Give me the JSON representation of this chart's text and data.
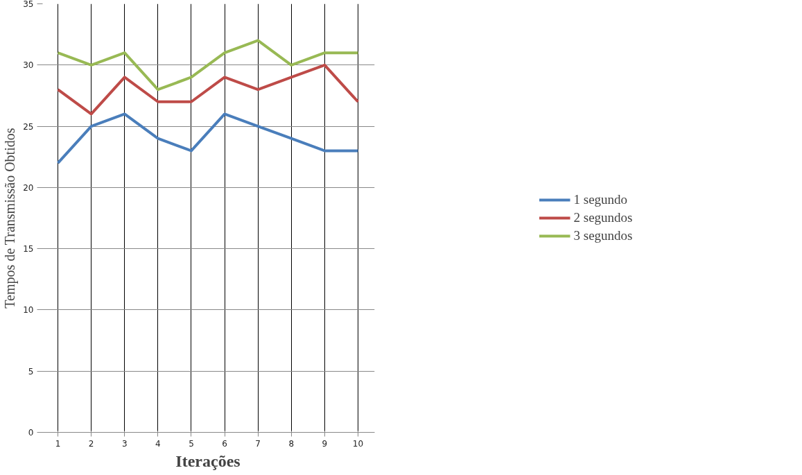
{
  "chart_data": {
    "type": "line",
    "xlabel": "Iterações",
    "ylabel": "Tempos de Transmissão Obtidos",
    "categories": [
      "1",
      "2",
      "3",
      "4",
      "5",
      "6",
      "7",
      "8",
      "9",
      "10"
    ],
    "series": [
      {
        "name": "1 segundo",
        "color": "#4a7ebb",
        "values": [
          22,
          25,
          26,
          24,
          23,
          26,
          25,
          24,
          23,
          23
        ]
      },
      {
        "name": "2 segundos",
        "color": "#be4b48",
        "values": [
          28,
          26,
          29,
          27,
          27,
          29,
          28,
          29,
          30,
          27
        ]
      },
      {
        "name": "3 segundos",
        "color": "#98b954",
        "values": [
          31,
          30,
          31,
          28,
          29,
          31,
          32,
          30,
          31,
          31
        ]
      }
    ],
    "ylim": [
      0,
      35
    ],
    "yticks": [
      0,
      5,
      10,
      15,
      20,
      25,
      30,
      35
    ],
    "grid": true,
    "legend": "right",
    "marker": "none",
    "line_style": "solid"
  }
}
